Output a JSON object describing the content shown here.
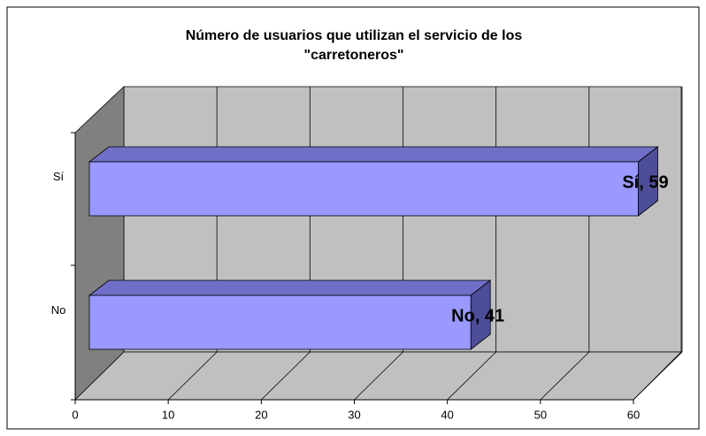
{
  "chart_data": {
    "type": "bar",
    "orientation": "horizontal",
    "three_d": true,
    "title": "Número de usuarios que utilizan el servicio de los \"carretoneros\"",
    "categories": [
      "No",
      "Sí"
    ],
    "values": [
      41,
      59
    ],
    "value_labels": [
      "No, 41",
      "Sí, 59"
    ],
    "color": "#9999ff",
    "xlim": [
      0,
      60
    ],
    "xticks": [
      0,
      10,
      20,
      30,
      40,
      50,
      60
    ],
    "grid": true,
    "legend": false
  }
}
